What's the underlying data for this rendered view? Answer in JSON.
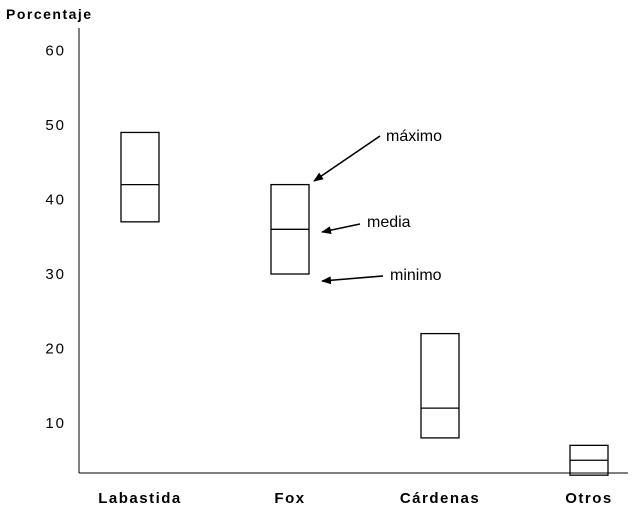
{
  "chart_data": {
    "type": "range-box",
    "ylabel": "Porcentaje",
    "yticks": [
      10,
      20,
      30,
      40,
      50,
      60
    ],
    "categories": [
      "Labastida",
      "Fox",
      "Cárdenas",
      "Otros"
    ],
    "ranges": [
      {
        "category": "Labastida",
        "min": 37,
        "mean": 42,
        "max": 49
      },
      {
        "category": "Fox",
        "min": 30,
        "mean": 36,
        "max": 42
      },
      {
        "category": "Cárdenas",
        "min": 8,
        "mean": 12,
        "max": 22
      },
      {
        "category": "Otros",
        "min": 3,
        "mean": 5,
        "max": 7
      }
    ],
    "annotations": [
      {
        "label": "máximo",
        "category": "Fox",
        "target": "max"
      },
      {
        "label": "media",
        "category": "Fox",
        "target": "mean"
      },
      {
        "label": "minimo",
        "category": "Fox",
        "target": "min"
      }
    ],
    "grid": false,
    "legend": "none"
  }
}
